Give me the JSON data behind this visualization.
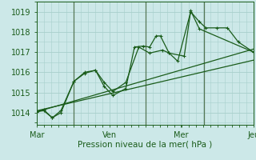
{
  "xlabel": "Pression niveau de la mer( hPa )",
  "ylim": [
    1013.4,
    1019.5
  ],
  "yticks": [
    1014,
    1015,
    1016,
    1017,
    1018,
    1019
  ],
  "xtick_labels": [
    "Mar",
    "Ven",
    "Mer",
    "Jeu"
  ],
  "background_color": "#cce8e8",
  "grid_color": "#a8d0cc",
  "line_color": "#1a5c1a",
  "line1_x": [
    0,
    0.15,
    0.35,
    0.55,
    0.85,
    1.1,
    1.35,
    1.55,
    1.75,
    2.05,
    2.25,
    2.45,
    2.6,
    2.75,
    2.85,
    3.05,
    3.25,
    3.55,
    3.75,
    3.9,
    4.15,
    4.4,
    4.65,
    5.0
  ],
  "line1_y": [
    1014.05,
    1014.15,
    1013.75,
    1014.0,
    1015.55,
    1015.95,
    1016.1,
    1015.3,
    1014.85,
    1015.2,
    1017.25,
    1017.3,
    1017.25,
    1017.8,
    1017.8,
    1016.95,
    1016.55,
    1019.0,
    1018.5,
    1018.2,
    1018.2,
    1018.2,
    1017.5,
    1017.0
  ],
  "line2_x": [
    0,
    0.15,
    0.35,
    0.55,
    0.85,
    1.1,
    1.35,
    1.55,
    1.75,
    2.05,
    2.35,
    2.6,
    2.9,
    3.05,
    3.4,
    3.55,
    3.75,
    5.0
  ],
  "line2_y": [
    1014.05,
    1014.1,
    1013.75,
    1014.1,
    1015.55,
    1016.0,
    1016.1,
    1015.5,
    1015.05,
    1015.5,
    1017.25,
    1016.95,
    1017.1,
    1016.95,
    1016.8,
    1019.05,
    1018.15,
    1017.0
  ],
  "trend1_x": [
    0,
    5.0
  ],
  "trend1_y": [
    1014.05,
    1017.15
  ],
  "trend2_x": [
    0,
    5.0
  ],
  "trend2_y": [
    1014.1,
    1016.6
  ],
  "vlines_x": [
    0.85,
    2.5,
    3.85
  ],
  "xtick_pos": [
    0.0,
    1.67,
    3.33,
    5.0
  ]
}
